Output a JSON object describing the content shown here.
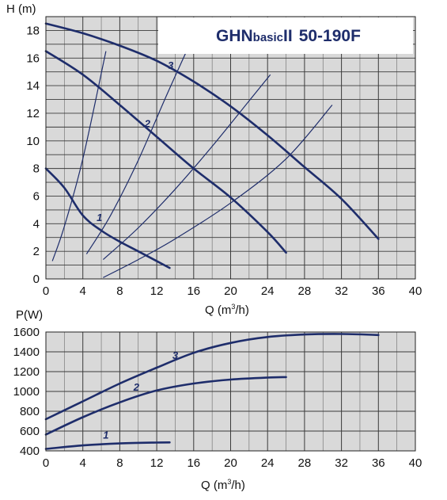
{
  "chart_data": [
    {
      "type": "line",
      "title": "GHNbasicII 50-190F",
      "title_parts": [
        "GHN",
        "basic",
        "II",
        "50-190F"
      ],
      "xlabel": "Q (m3/h)",
      "xlabel_parts": [
        "Q (m",
        "3",
        "/h)"
      ],
      "ylabel": "H (m)",
      "xlim": [
        0,
        40
      ],
      "ylim": [
        0,
        19
      ],
      "xticks": [
        "0",
        "4",
        "8",
        "12",
        "16",
        "20",
        "24",
        "28",
        "32",
        "36",
        "40"
      ],
      "yticks": [
        "0",
        "2",
        "4",
        "6",
        "8",
        "10",
        "12",
        "14",
        "16",
        "18"
      ],
      "grid": true,
      "plot_background": "#d9d9d9",
      "series": [
        {
          "name": "1",
          "values": [
            [
              0,
              8
            ],
            [
              2,
              6.6
            ],
            [
              4,
              4.6
            ],
            [
              6,
              3.5
            ],
            [
              8,
              2.7
            ],
            [
              10,
              2.0
            ],
            [
              13.4,
              0.8
            ]
          ]
        },
        {
          "name": "2",
          "values": [
            [
              0,
              16.5
            ],
            [
              4,
              14.8
            ],
            [
              8,
              12.6
            ],
            [
              12,
              10.3
            ],
            [
              16,
              8.0
            ],
            [
              20,
              5.9
            ],
            [
              24,
              3.4
            ],
            [
              26,
              1.9
            ]
          ]
        },
        {
          "name": "3",
          "values": [
            [
              0,
              18.5
            ],
            [
              4,
              17.8
            ],
            [
              8,
              16.9
            ],
            [
              12,
              15.8
            ],
            [
              16,
              14.3
            ],
            [
              20,
              12.5
            ],
            [
              24,
              10.4
            ],
            [
              28,
              8.1
            ],
            [
              32,
              5.8
            ],
            [
              36,
              2.9
            ]
          ]
        }
      ],
      "system_curves": [
        [
          [
            0.7,
            1.3
          ],
          [
            2,
            3.8
          ],
          [
            4,
            8.7
          ],
          [
            6.5,
            16.5
          ]
        ],
        [
          [
            4.4,
            1.8
          ],
          [
            7,
            4.6
          ],
          [
            10,
            8.6
          ],
          [
            13,
            13.2
          ],
          [
            15.5,
            16.9
          ]
        ],
        [
          [
            6.2,
            1.4
          ],
          [
            10,
            3.7
          ],
          [
            14,
            6.5
          ],
          [
            18,
            9.6
          ],
          [
            22,
            12.9
          ],
          [
            24.3,
            14.8
          ]
        ],
        [
          [
            6.2,
            0.1
          ],
          [
            10,
            1.4
          ],
          [
            14,
            2.9
          ],
          [
            20,
            5.5
          ],
          [
            26,
            8.7
          ],
          [
            31,
            12.6
          ]
        ]
      ],
      "curve_labels": [
        "1",
        "2",
        "3"
      ],
      "line_color": "#1e2d6b"
    },
    {
      "type": "line",
      "xlabel": "Q (m3/h)",
      "xlabel_parts": [
        "Q (m",
        "3",
        "/h)"
      ],
      "ylabel": "P(W)",
      "xlim": [
        0,
        40
      ],
      "ylim": [
        400,
        1600
      ],
      "xticks": [
        "0",
        "4",
        "8",
        "12",
        "16",
        "20",
        "24",
        "28",
        "32",
        "36",
        "40"
      ],
      "yticks": [
        "400",
        "600",
        "800",
        "1000",
        "1200",
        "1400",
        "1600"
      ],
      "grid": true,
      "plot_background": "#d9d9d9",
      "series": [
        {
          "name": "1",
          "values": [
            [
              0,
              420
            ],
            [
              4,
              455
            ],
            [
              8,
              475
            ],
            [
              12,
              484
            ],
            [
              13.4,
              486
            ]
          ]
        },
        {
          "name": "2",
          "values": [
            [
              0,
              565
            ],
            [
              4,
              740
            ],
            [
              8,
              890
            ],
            [
              12,
              1010
            ],
            [
              16,
              1080
            ],
            [
              20,
              1120
            ],
            [
              24,
              1140
            ],
            [
              26,
              1145
            ]
          ]
        },
        {
          "name": "3",
          "values": [
            [
              0,
              720
            ],
            [
              4,
              900
            ],
            [
              8,
              1080
            ],
            [
              12,
              1240
            ],
            [
              16,
              1390
            ],
            [
              20,
              1490
            ],
            [
              24,
              1550
            ],
            [
              28,
              1575
            ],
            [
              32,
              1580
            ],
            [
              36,
              1570
            ]
          ]
        }
      ],
      "curve_labels": [
        "1",
        "2",
        "3"
      ],
      "line_color": "#1e2d6b"
    }
  ]
}
